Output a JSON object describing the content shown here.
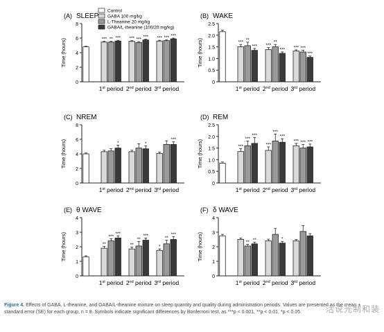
{
  "legend": {
    "items": [
      {
        "label": "Control",
        "color": "#ffffff"
      },
      {
        "label": "GABA 100 mg/kg",
        "color": "#d9d9d9"
      },
      {
        "label": "L-Theanine 20 mg/kg",
        "color": "#9a9a9a"
      },
      {
        "label": "GABA/L-theanine (100/20 mg/kg)",
        "color": "#3a3a3a"
      }
    ]
  },
  "caption": {
    "lead": "Figure 4.",
    "text": "Effects of GABA, L-theanine, and GABA/L-theanine mixture on sleep quantity and quality during administration periods. Values are presented as the mean ± standard error (SE) for each group, n = 8. Symbols indicate significant differences by Bonferroni test, as ***p < 0.001, **p < 0.01, *p < 0.05."
  },
  "watermark": "活说光制和装",
  "chart_data": [
    {
      "panel": "(A)",
      "title": "SLEEP",
      "type": "bar",
      "ylabel": "Time (hours)",
      "ylim": [
        0,
        8
      ],
      "yticks": [
        0,
        2,
        4,
        6,
        8
      ],
      "control": {
        "value": 4.8,
        "err": 0.08
      },
      "categories": [
        "1st period",
        "2nd period",
        "3rd period"
      ],
      "series": [
        {
          "values": [
            5.45,
            5.55,
            5.6
          ],
          "err": [
            0.12,
            0.1,
            0.1
          ],
          "sig": [
            "***",
            "***",
            "***"
          ]
        },
        {
          "values": [
            5.45,
            5.4,
            5.65
          ],
          "err": [
            0.1,
            0.12,
            0.1
          ],
          "sig": [
            "**",
            "***",
            "***"
          ]
        },
        {
          "values": [
            5.6,
            5.75,
            5.9
          ],
          "err": [
            0.1,
            0.1,
            0.1
          ],
          "sig": [
            "***",
            "***",
            "***"
          ]
        }
      ]
    },
    {
      "panel": "(B)",
      "title": "WAKE",
      "type": "bar",
      "ylabel": "Time (hours)",
      "ylim": [
        0,
        2.5
      ],
      "yticks": [
        0,
        0.5,
        1.0,
        1.5,
        2.0,
        2.5
      ],
      "control": {
        "value": 2.15,
        "err": 0.07
      },
      "categories": [
        "1st period",
        "2nd period",
        "3rd period"
      ],
      "series": [
        {
          "values": [
            1.5,
            1.38,
            1.32
          ],
          "err": [
            0.1,
            0.09,
            0.05
          ],
          "sig": [
            "***",
            "***",
            "***"
          ]
        },
        {
          "values": [
            1.55,
            1.5,
            1.28
          ],
          "err": [
            0.15,
            0.1,
            0.08
          ],
          "sig": [
            "**",
            "**",
            "***"
          ]
        },
        {
          "values": [
            1.35,
            1.22,
            1.05
          ],
          "err": [
            0.08,
            0.06,
            0.06
          ],
          "sig": [
            "***",
            "***",
            "***"
          ]
        }
      ]
    },
    {
      "panel": "(C)",
      "title": "NREM",
      "type": "bar",
      "ylabel": "Time (hours)",
      "ylim": [
        0,
        8
      ],
      "yticks": [
        0,
        2,
        4,
        6,
        8
      ],
      "control": {
        "value": 4.0,
        "err": 0.12
      },
      "categories": [
        "1st period",
        "2nd period",
        "3rd period"
      ],
      "series": [
        {
          "values": [
            4.3,
            4.3,
            4.05
          ],
          "err": [
            0.2,
            0.2,
            0.2
          ],
          "sig": [
            "",
            "",
            ""
          ]
        },
        {
          "values": [
            4.4,
            4.8,
            5.3
          ],
          "err": [
            0.3,
            0.6,
            0.5
          ],
          "sig": [
            "",
            "",
            ""
          ]
        },
        {
          "values": [
            4.8,
            4.7,
            5.3
          ],
          "err": [
            0.4,
            0.4,
            0.35
          ],
          "sig": [
            "*",
            "*",
            "***"
          ]
        }
      ]
    },
    {
      "panel": "(D)",
      "title": "REM",
      "type": "bar",
      "ylabel": "Time (hours)",
      "ylim": [
        0,
        2.5
      ],
      "yticks": [
        0,
        0.5,
        1.0,
        1.5,
        2.0,
        2.5
      ],
      "control": {
        "value": 0.85,
        "err": 0.05
      },
      "categories": [
        "1st period",
        "2nd period",
        "3rd period"
      ],
      "series": [
        {
          "values": [
            1.35,
            1.4,
            1.6
          ],
          "err": [
            0.12,
            0.15,
            0.1
          ],
          "sig": [
            "***",
            "***",
            "***"
          ]
        },
        {
          "values": [
            1.6,
            1.8,
            1.5
          ],
          "err": [
            0.2,
            0.3,
            0.15
          ],
          "sig": [
            "***",
            "***",
            "***"
          ]
        },
        {
          "values": [
            1.7,
            1.75,
            1.55
          ],
          "err": [
            0.25,
            0.15,
            0.12
          ],
          "sig": [
            "***",
            "***",
            "***"
          ]
        }
      ]
    },
    {
      "panel": "(E)",
      "title": "θ WAVE",
      "type": "bar",
      "ylabel": "Time (hours)",
      "ylim": [
        0,
        4
      ],
      "yticks": [
        0,
        1,
        2,
        3,
        4
      ],
      "control": {
        "value": 1.3,
        "err": 0.08
      },
      "categories": [
        "1st period",
        "2nd period",
        "3rd period"
      ],
      "series": [
        {
          "values": [
            1.9,
            1.85,
            1.75
          ],
          "err": [
            0.12,
            0.12,
            0.1
          ],
          "sig": [
            "**",
            "**",
            "*"
          ]
        },
        {
          "values": [
            2.4,
            2.05,
            2.2
          ],
          "err": [
            0.15,
            0.3,
            0.25
          ],
          "sig": [
            "***",
            "**",
            "**"
          ]
        },
        {
          "values": [
            2.6,
            2.45,
            2.5
          ],
          "err": [
            0.15,
            0.15,
            0.2
          ],
          "sig": [
            "***",
            "***",
            "***"
          ]
        }
      ]
    },
    {
      "panel": "(F)",
      "title": "δ WAVE",
      "type": "bar",
      "ylabel": "Time (hours)",
      "ylim": [
        0,
        4
      ],
      "yticks": [
        0,
        1,
        2,
        3,
        4
      ],
      "control": {
        "value": 2.75,
        "err": 0.1
      },
      "categories": [
        "1st period",
        "2nd period",
        "3rd period"
      ],
      "series": [
        {
          "values": [
            2.5,
            2.4,
            2.4
          ],
          "err": [
            0.1,
            0.12,
            0.1
          ],
          "sig": [
            "",
            "",
            ""
          ]
        },
        {
          "values": [
            2.05,
            2.85,
            3.05
          ],
          "err": [
            0.12,
            0.4,
            0.4
          ],
          "sig": [
            "**",
            "",
            ""
          ]
        },
        {
          "values": [
            2.2,
            2.25,
            2.75
          ],
          "err": [
            0.12,
            0.12,
            0.15
          ],
          "sig": [
            "**",
            "*",
            ""
          ]
        }
      ]
    }
  ]
}
